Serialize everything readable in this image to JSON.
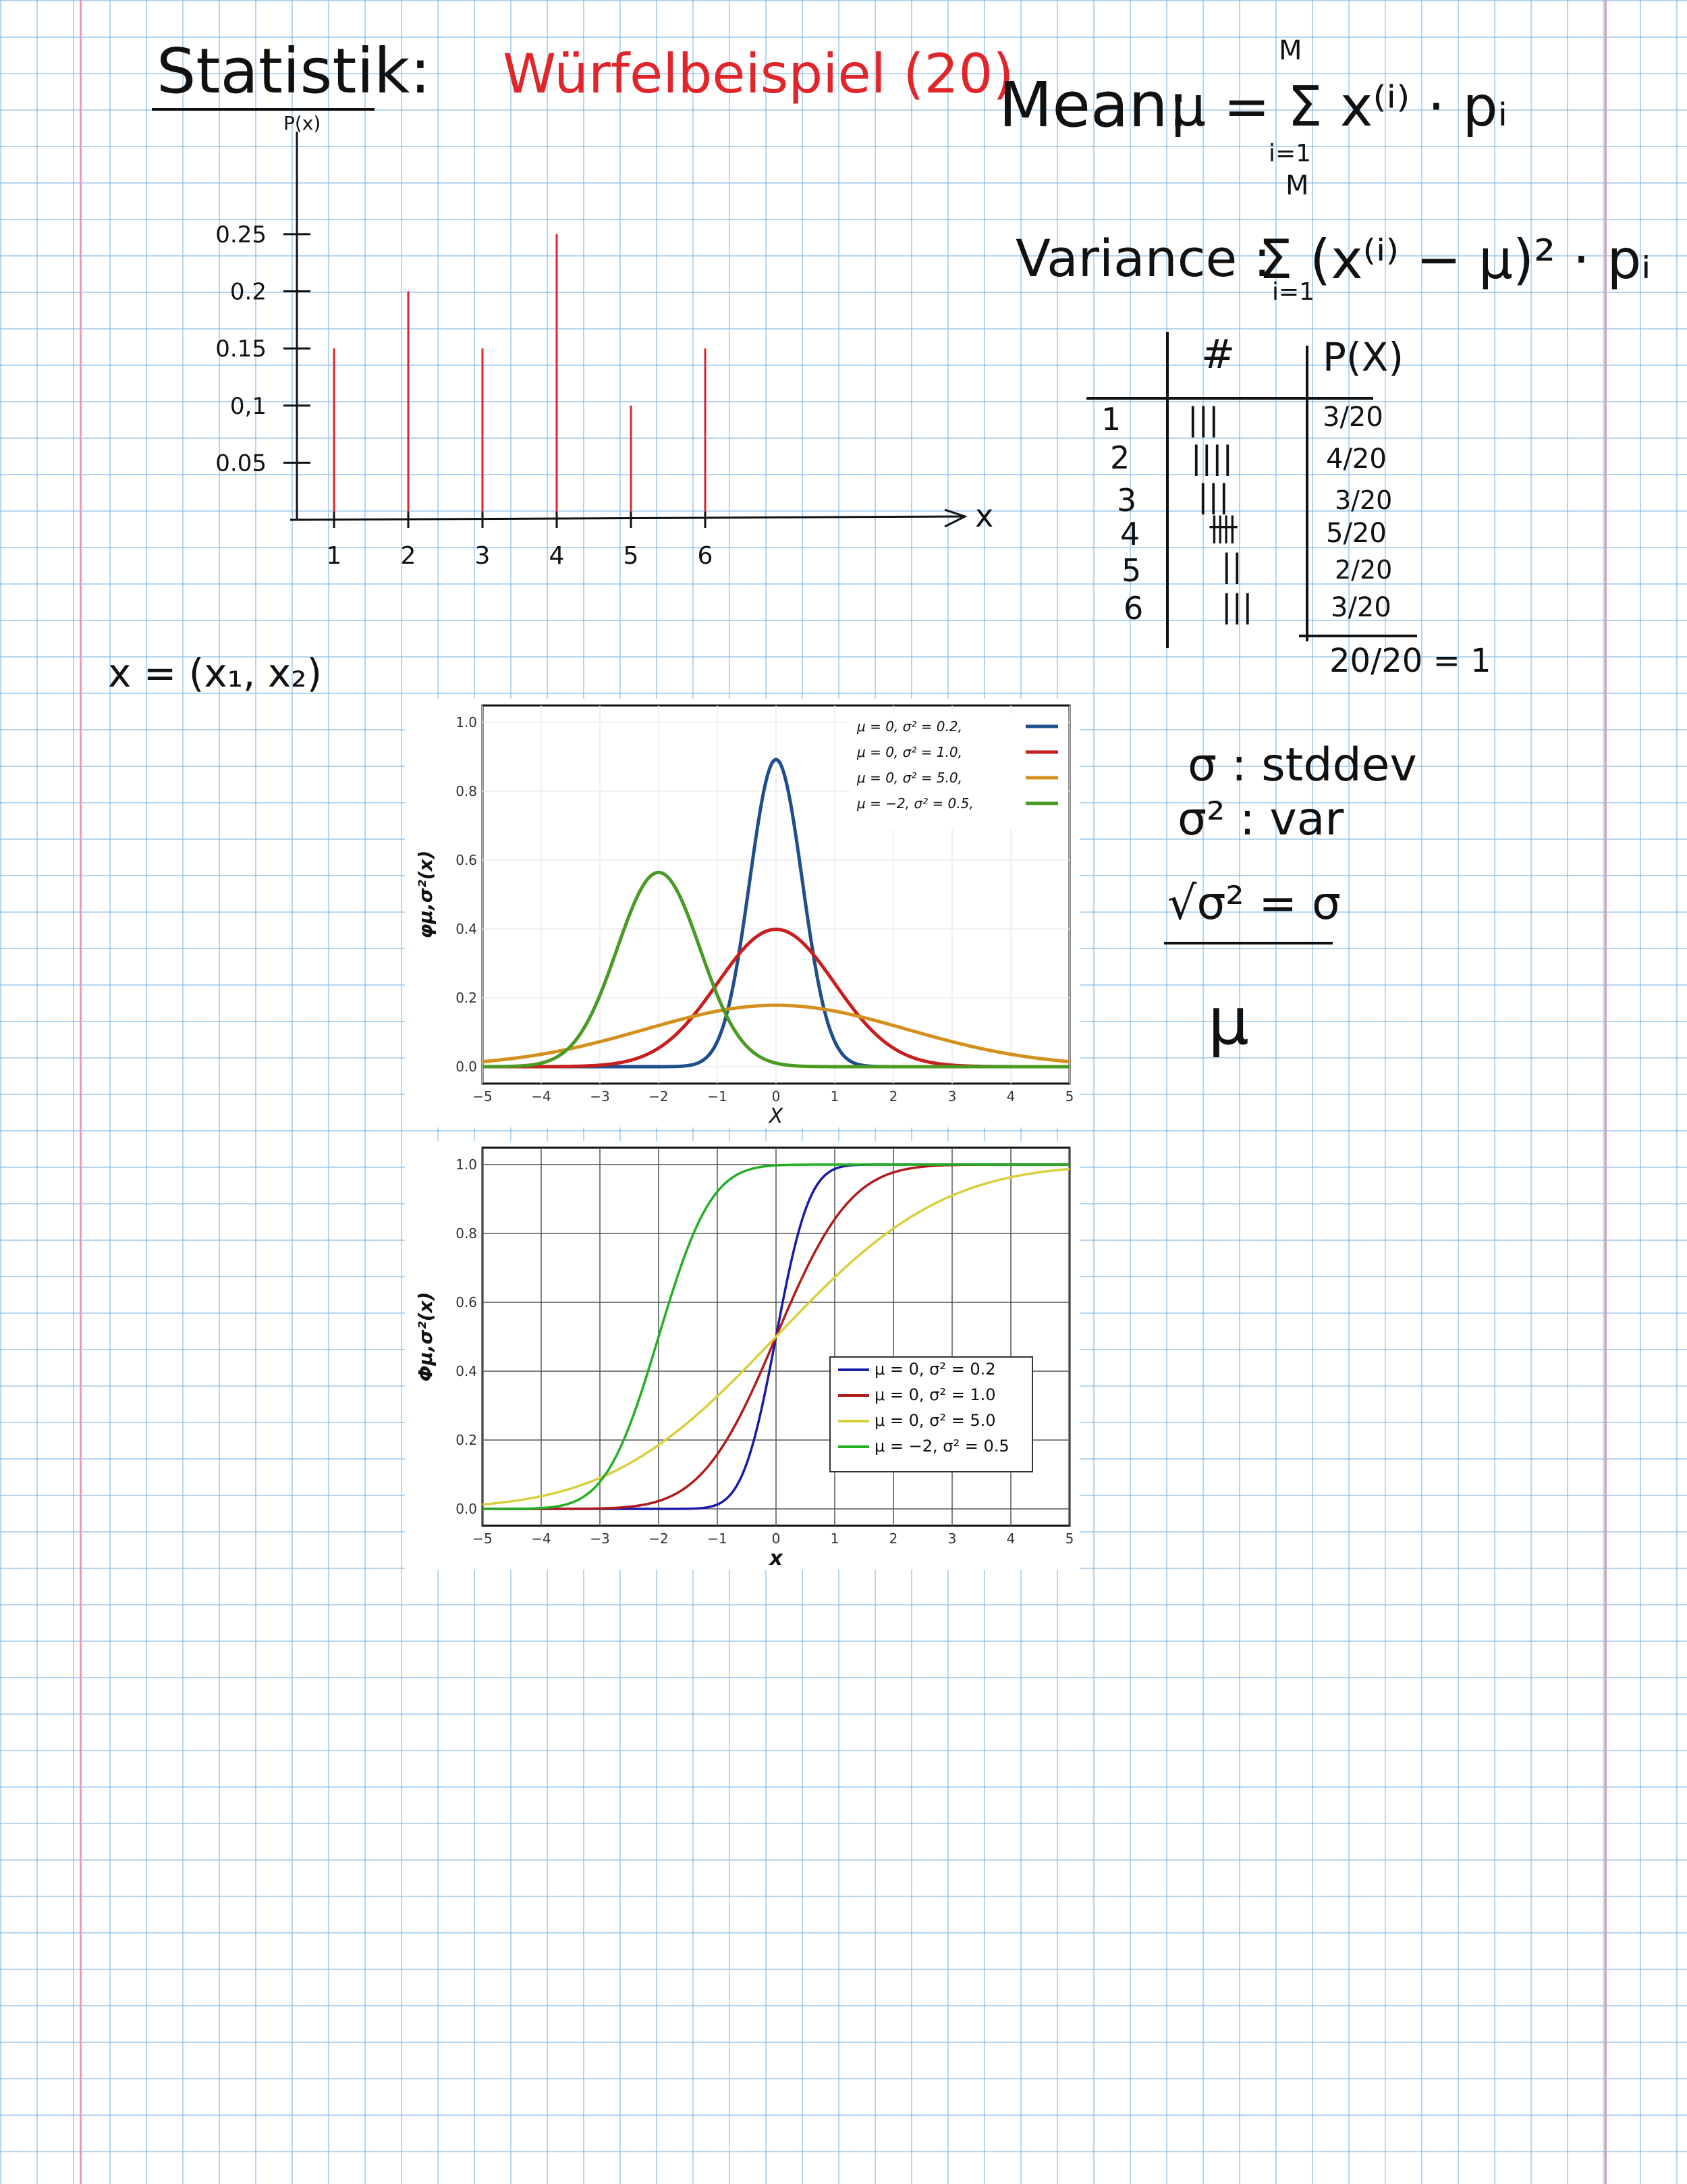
{
  "notes": {
    "title": "Statistik:",
    "example_title": "Würfelbeispiel (20)",
    "mean_label": "Mean:",
    "mean_formula": "μ = Σ x⁽ⁱ⁾ · pᵢ",
    "variance_label": "Variance :",
    "variance_formula": "Σ (x⁽ⁱ⁾ − μ)² · pᵢ",
    "sum_upper": "M",
    "sum_lower": "i=1",
    "vector": "x = (x₁, x₂)",
    "sigma_def": "σ : stddev",
    "sigma2_def": "σ² : var",
    "sqrt_rule": "√σ² = σ",
    "mu": "μ"
  },
  "table": {
    "headers": [
      "#",
      "P(X)"
    ],
    "rows": [
      {
        "x": "1",
        "tally": "|||",
        "p": "3/20"
      },
      {
        "x": "2",
        "tally": "||||",
        "p": "4/20"
      },
      {
        "x": "3",
        "tally": "|||",
        "p": "3/20"
      },
      {
        "x": "4",
        "tally": "卌",
        "p": "5/20"
      },
      {
        "x": "5",
        "tally": "||",
        "p": "2/20"
      },
      {
        "x": "6",
        "tally": "|||",
        "p": "3/20"
      }
    ],
    "total": "20/20 = 1"
  },
  "chart_data": [
    {
      "type": "bar",
      "ylabel": "P(x)",
      "xlabel": "x",
      "categories": [
        "1",
        "2",
        "3",
        "4",
        "5",
        "6"
      ],
      "values": [
        0.15,
        0.2,
        0.15,
        0.25,
        0.1,
        0.15
      ],
      "ytick_labels": [
        "0.05",
        "0,1",
        "0.15",
        "0.2",
        "0.25"
      ],
      "ytick_values": [
        0.05,
        0.1,
        0.15,
        0.2,
        0.25
      ],
      "ylim": [
        0,
        0.26
      ],
      "colors": {
        "bars": "#e0262b",
        "axes": "#111111"
      }
    },
    {
      "type": "line",
      "xlabel": "X",
      "ylabel": "φμ,σ²(x)",
      "xlim": [
        -5,
        5
      ],
      "ylim": [
        0,
        1
      ],
      "xticks": [
        -5,
        -4,
        -3,
        -2,
        -1,
        0,
        1,
        2,
        3,
        4,
        5
      ],
      "yticks": [
        0.0,
        0.2,
        0.4,
        0.6,
        0.8,
        1.0
      ],
      "grid": true,
      "legend": "top-right",
      "series": [
        {
          "name": "μ = 0,   σ² = 0.2,",
          "mu": 0,
          "var": 0.2,
          "color": "#1f4e8c"
        },
        {
          "name": "μ = 0,   σ² = 1.0,",
          "mu": 0,
          "var": 1.0,
          "color": "#c81e1e"
        },
        {
          "name": "μ = 0,   σ² = 5.0,",
          "mu": 0,
          "var": 5.0,
          "color": "#d4901e"
        },
        {
          "name": "μ = −2,  σ² = 0.5,",
          "mu": -2,
          "var": 0.5,
          "color": "#4a9a23"
        }
      ]
    },
    {
      "type": "line",
      "xlabel": "x",
      "ylabel": "Φμ,σ²(x)",
      "xlim": [
        -5,
        5
      ],
      "ylim": [
        0,
        1
      ],
      "xticks": [
        -5,
        -4,
        -3,
        -2,
        -1,
        0,
        1,
        2,
        3,
        4,
        5
      ],
      "yticks": [
        0.0,
        0.2,
        0.4,
        0.6,
        0.8,
        1.0
      ],
      "grid": true,
      "legend": "bottom-right",
      "series": [
        {
          "name": "μ =   0,  σ² = 0.2",
          "mu": 0,
          "var": 0.2,
          "color": "#1a1aa8"
        },
        {
          "name": "μ =   0,  σ² = 1.0",
          "mu": 0,
          "var": 1.0,
          "color": "#b01a1a"
        },
        {
          "name": "μ =   0,  σ² = 5.0",
          "mu": 0,
          "var": 5.0,
          "color": "#d8cf3c"
        },
        {
          "name": "μ = −2,  σ² = 0.5",
          "mu": -2,
          "var": 0.5,
          "color": "#22b022"
        }
      ]
    }
  ]
}
